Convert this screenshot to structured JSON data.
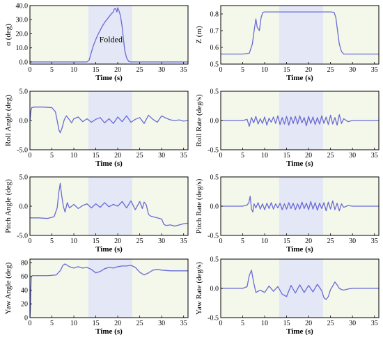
{
  "figure": {
    "background_color": "#f3f8ea",
    "highlight_color": "#e4e7f5",
    "line_color": "#6a6ad6",
    "highlight_x_range": [
      13.3,
      23.3
    ],
    "highlight_label": "Folded"
  },
  "chart_data": [
    {
      "type": "line",
      "xlabel": "Time (s)",
      "ylabel": "α (deg)",
      "xlim": [
        0,
        36
      ],
      "ylim": [
        -1.5,
        40
      ],
      "xticks": [
        0,
        5,
        10,
        15,
        20,
        25,
        30,
        35
      ],
      "yticks": [
        0.0,
        10.0,
        20.0,
        30.0,
        40.0
      ],
      "ytick_labels": [
        "0.0",
        "10.0",
        "20.0",
        "30.0",
        "40.0"
      ],
      "annotation": "Folded",
      "x": [
        0,
        5,
        10,
        13,
        13.5,
        14,
        14.5,
        15,
        15.5,
        16,
        16.5,
        17,
        17.5,
        18,
        18.5,
        19,
        19.2,
        19.5,
        19.8,
        20,
        20.3,
        20.6,
        21,
        21.3,
        21.6,
        22,
        22.5,
        23,
        25,
        30,
        36
      ],
      "y": [
        0,
        0,
        0,
        0,
        1.5,
        7,
        12,
        16,
        19.5,
        22.5,
        25.5,
        28,
        30,
        32,
        34,
        35.5,
        37.5,
        38,
        35.5,
        38.5,
        36,
        33,
        25,
        16,
        8,
        3,
        0.4,
        0,
        0,
        0,
        0
      ]
    },
    {
      "type": "line",
      "xlabel": "Time (s)",
      "ylabel": "Z (m)",
      "xlim": [
        0,
        36
      ],
      "ylim": [
        0.5,
        0.85
      ],
      "xticks": [
        0,
        5,
        10,
        15,
        20,
        25,
        30,
        35
      ],
      "yticks": [
        0.5,
        0.6,
        0.7,
        0.8
      ],
      "ytick_labels": [
        "0.5",
        "0.6",
        "0.7",
        "0.8"
      ],
      "x": [
        0,
        5,
        6.5,
        7.2,
        7.6,
        8.0,
        8.3,
        8.8,
        9.2,
        9.6,
        10,
        12,
        15,
        20,
        25,
        25.8,
        26.2,
        26.6,
        27,
        27.5,
        28,
        30,
        36
      ],
      "y": [
        0.56,
        0.56,
        0.565,
        0.62,
        0.7,
        0.77,
        0.72,
        0.7,
        0.78,
        0.81,
        0.812,
        0.812,
        0.812,
        0.812,
        0.812,
        0.81,
        0.78,
        0.7,
        0.62,
        0.575,
        0.56,
        0.56,
        0.56
      ]
    },
    {
      "type": "line",
      "xlabel": "Time (s)",
      "ylabel": "Roll Angle (deg)",
      "xlim": [
        0,
        36
      ],
      "ylim": [
        -5.0,
        5.0
      ],
      "xticks": [
        0,
        5,
        10,
        15,
        20,
        25,
        30,
        35
      ],
      "yticks": [
        -5.0,
        0.0,
        5.0
      ],
      "ytick_labels": [
        "-5.0",
        "0.0",
        "5.0"
      ],
      "x": [
        0,
        0.2,
        0.4,
        1,
        3,
        5,
        5.8,
        6.2,
        6.6,
        6.9,
        7.3,
        7.8,
        8.3,
        9,
        9.5,
        10,
        11,
        12,
        13,
        14,
        15,
        16,
        17,
        18,
        19,
        20,
        21,
        22,
        23,
        24,
        25,
        26,
        27,
        28,
        29,
        30,
        31,
        32,
        33,
        34,
        35,
        36
      ],
      "y": [
        0,
        1.5,
        2.2,
        2.3,
        2.3,
        2.2,
        1.5,
        0,
        -1.6,
        -2.1,
        -1.3,
        0.1,
        0.8,
        0.1,
        -0.4,
        0.3,
        0.6,
        -0.2,
        0.3,
        -0.3,
        0.2,
        0.5,
        -0.4,
        0.3,
        -0.5,
        0.6,
        -0.2,
        0.8,
        -0.3,
        0.2,
        0.5,
        -0.5,
        0.9,
        0.2,
        -0.3,
        0.8,
        0.4,
        0.1,
        0,
        0.1,
        -0.1,
        0
      ]
    },
    {
      "type": "line",
      "xlabel": "Time (s)",
      "ylabel": "Roll Rate (deg/s)",
      "xlim": [
        0,
        36
      ],
      "ylim": [
        -0.5,
        0.5
      ],
      "xticks": [
        0,
        5,
        10,
        15,
        20,
        25,
        30,
        35
      ],
      "yticks": [
        -0.5,
        0.0,
        0.5
      ],
      "ytick_labels": [
        "-0.5",
        "0.0",
        "0.5"
      ],
      "x": [
        0,
        5,
        6,
        6.5,
        7,
        7.5,
        8,
        8.5,
        9,
        9.5,
        10,
        10.5,
        11,
        11.5,
        12,
        12.5,
        13,
        13.5,
        14,
        14.5,
        15,
        15.5,
        16,
        16.5,
        17,
        17.5,
        18,
        18.5,
        19,
        19.5,
        20,
        20.5,
        21,
        21.5,
        22,
        22.5,
        23,
        23.5,
        24,
        24.5,
        25,
        25.5,
        26,
        26.5,
        27,
        27.5,
        28,
        29,
        30,
        32,
        36
      ],
      "y": [
        0,
        0,
        0.02,
        -0.1,
        0.05,
        -0.04,
        0.07,
        -0.06,
        0.03,
        -0.05,
        0.06,
        -0.08,
        0.04,
        -0.03,
        0.06,
        -0.05,
        0.08,
        -0.07,
        0.05,
        -0.06,
        0.07,
        -0.08,
        0.06,
        -0.05,
        0.07,
        -0.06,
        0.08,
        -0.04,
        0.05,
        -0.09,
        0.07,
        -0.05,
        0.06,
        -0.07,
        0.05,
        -0.06,
        0.08,
        -0.05,
        0.06,
        -0.07,
        0.09,
        -0.06,
        0.05,
        -0.08,
        0.1,
        -0.05,
        0.03,
        -0.02,
        0,
        0,
        0
      ]
    },
    {
      "type": "line",
      "xlabel": "Time (s)",
      "ylabel": "Pitch Angle (deg)",
      "xlim": [
        0,
        36
      ],
      "ylim": [
        -5.0,
        5.0
      ],
      "xticks": [
        0,
        5,
        10,
        15,
        20,
        25,
        30,
        35
      ],
      "yticks": [
        -5.0,
        0.0,
        5.0
      ],
      "ytick_labels": [
        "-5.0",
        "0.0",
        "5.0"
      ],
      "x": [
        0,
        2,
        4,
        5.5,
        6.2,
        6.6,
        6.9,
        7.2,
        7.6,
        8,
        8.5,
        9,
        10,
        11,
        12,
        13,
        14,
        15,
        16,
        17,
        18,
        19,
        20,
        21,
        22,
        23,
        24,
        25,
        25.6,
        26,
        26.5,
        27,
        27.5,
        28,
        29,
        30,
        30.5,
        31,
        32,
        33,
        34,
        35,
        36
      ],
      "y": [
        -2.0,
        -2.0,
        -2.1,
        -1.8,
        -0.3,
        2.5,
        3.9,
        2.0,
        0,
        -1.0,
        0.6,
        -0.3,
        0.3,
        -0.4,
        0.1,
        0.4,
        -0.3,
        0.4,
        -0.2,
        0.6,
        -0.1,
        0.3,
        0,
        0.8,
        -0.3,
        0.9,
        -0.6,
        0.8,
        -0.4,
        0.7,
        0.2,
        -1.4,
        -1.7,
        -1.8,
        -2.0,
        -2.2,
        -3.1,
        -3.3,
        -3.2,
        -3.4,
        -3.2,
        -3.0,
        -2.9
      ]
    },
    {
      "type": "line",
      "xlabel": "Time (s)",
      "ylabel": "Pitch Rate (deg/s)",
      "xlim": [
        0,
        36
      ],
      "ylim": [
        -0.5,
        0.5
      ],
      "xticks": [
        0,
        5,
        10,
        15,
        20,
        25,
        30,
        35
      ],
      "yticks": [
        -0.5,
        0.0,
        0.5
      ],
      "ytick_labels": [
        "-0.5",
        "0.0",
        "0.5"
      ],
      "x": [
        0,
        5,
        6,
        6.4,
        6.7,
        7.0,
        7.3,
        7.6,
        8,
        8.5,
        9,
        9.5,
        10,
        10.5,
        11,
        11.5,
        12,
        12.5,
        13,
        13.5,
        14,
        14.5,
        15,
        15.5,
        16,
        16.5,
        17,
        17.5,
        18,
        18.5,
        19,
        19.5,
        20,
        20.5,
        21,
        21.5,
        22,
        22.5,
        23,
        23.5,
        24,
        24.5,
        25,
        25.5,
        26,
        26.5,
        27,
        27.5,
        28,
        29,
        30,
        36
      ],
      "y": [
        0,
        0,
        0.02,
        0.06,
        0.17,
        -0.05,
        -0.1,
        0.04,
        -0.03,
        0.06,
        -0.05,
        0.04,
        -0.06,
        0.05,
        -0.04,
        0.06,
        -0.05,
        0.04,
        -0.03,
        0.05,
        -0.06,
        0.04,
        -0.05,
        0.06,
        -0.04,
        0.05,
        -0.06,
        0.04,
        -0.05,
        0.07,
        -0.04,
        0.05,
        -0.06,
        0.08,
        -0.05,
        0.06,
        -0.07,
        0.05,
        -0.04,
        0.06,
        -0.08,
        0.07,
        -0.05,
        0.09,
        -0.06,
        0.05,
        -0.08,
        0.04,
        -0.02,
        0.01,
        0,
        0
      ]
    },
    {
      "type": "line",
      "xlabel": "Time (s)",
      "ylabel": "Yaw Angle (deg)",
      "xlim": [
        0,
        36
      ],
      "ylim": [
        0,
        85
      ],
      "xticks": [
        0,
        5,
        10,
        15,
        20,
        25,
        30,
        35
      ],
      "yticks": [
        0,
        20,
        40,
        60,
        80
      ],
      "ytick_labels": [
        "0",
        "20",
        "40",
        "60",
        "80"
      ],
      "x": [
        0,
        0.1,
        0.2,
        0.3,
        0.5,
        2,
        4,
        6,
        7,
        7.5,
        8,
        9,
        10,
        11,
        12,
        13,
        14,
        15,
        16,
        17,
        18,
        19,
        20,
        21,
        22,
        23,
        24,
        25,
        26,
        27,
        28,
        29,
        30,
        32,
        34,
        36
      ],
      "y": [
        0,
        12,
        40,
        58,
        61,
        61,
        61,
        62,
        69,
        76,
        78,
        74,
        72,
        74,
        72,
        73,
        70,
        65,
        67,
        71,
        73,
        72,
        74,
        75,
        75,
        76,
        73,
        66,
        62,
        65,
        69,
        70,
        69,
        68,
        68,
        68
      ]
    },
    {
      "type": "line",
      "xlabel": "Time (s)",
      "ylabel": "Yaw Rate (deg/s)",
      "xlim": [
        0,
        36
      ],
      "ylim": [
        -0.5,
        0.5
      ],
      "xticks": [
        0,
        5,
        10,
        15,
        20,
        25,
        30,
        35
      ],
      "yticks": [
        -0.5,
        0.0,
        0.5
      ],
      "ytick_labels": [
        "-0.5",
        "0.0",
        "0.5"
      ],
      "x": [
        0,
        5,
        6,
        6.5,
        7,
        7.5,
        8,
        8.5,
        9,
        10,
        11,
        12,
        13,
        14,
        15,
        16,
        17,
        18,
        19,
        20,
        21,
        22,
        23,
        23.5,
        24,
        24.5,
        25,
        25.5,
        26,
        26.5,
        27,
        27.5,
        28,
        29,
        30,
        36
      ],
      "y": [
        0,
        0,
        0.03,
        0.22,
        0.31,
        0.1,
        -0.07,
        -0.05,
        -0.03,
        -0.07,
        0.04,
        -0.05,
        0.03,
        -0.1,
        -0.14,
        0.05,
        -0.08,
        0.06,
        -0.07,
        0.05,
        -0.06,
        0.07,
        -0.04,
        -0.16,
        -0.19,
        -0.14,
        -0.02,
        0.04,
        0.11,
        0.06,
        0.0,
        -0.02,
        -0.03,
        -0.01,
        0,
        0
      ]
    }
  ]
}
